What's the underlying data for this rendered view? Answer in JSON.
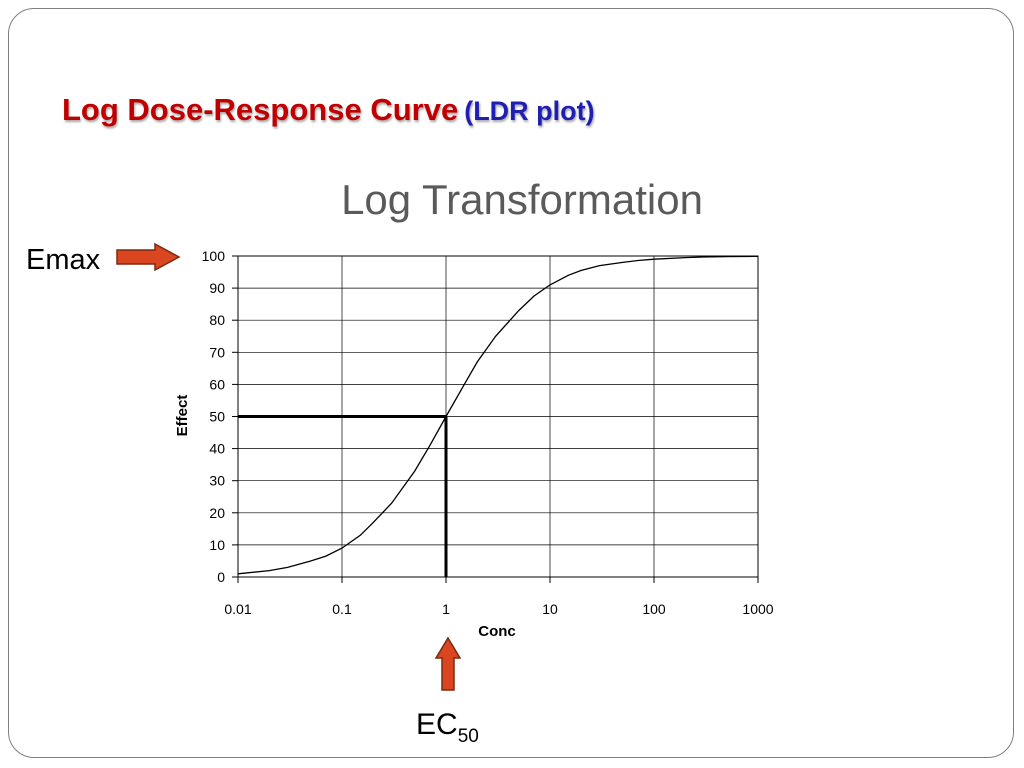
{
  "slide": {
    "title": "Log Dose-Response Curve",
    "title_suffix": "(LDR plot)",
    "subtitle": "Log Transformation",
    "emax_label": "Emax",
    "ec_label": "EC",
    "ec_subscript": "50"
  },
  "colors": {
    "title": "#c00000",
    "title_suffix": "#1f1fb4",
    "subtitle": "#5a5a5a",
    "arrow_fill": "#d9461f",
    "arrow_stroke": "#7a2a10"
  },
  "chart_data": {
    "type": "line",
    "xlabel": "Conc",
    "ylabel": "Effect",
    "x_scale": "log",
    "xlim": [
      0.01,
      1000
    ],
    "ylim": [
      0,
      100
    ],
    "x_ticks": [
      0.01,
      0.1,
      1,
      10,
      100,
      1000
    ],
    "x_tick_labels": [
      "0.01",
      "0.1",
      "1",
      "10",
      "100",
      "1000"
    ],
    "y_ticks": [
      0,
      10,
      20,
      30,
      40,
      50,
      60,
      70,
      80,
      90,
      100
    ],
    "y_tick_labels": [
      "0",
      "10",
      "20",
      "30",
      "40",
      "50",
      "60",
      "70",
      "80",
      "90",
      "100"
    ],
    "grid": true,
    "series": [
      {
        "x": [
          0.01,
          0.02,
          0.03,
          0.05,
          0.07,
          0.1,
          0.15,
          0.2,
          0.3,
          0.5,
          0.7,
          1,
          1.5,
          2,
          3,
          5,
          7,
          10,
          15,
          20,
          30,
          50,
          70,
          100,
          200,
          300,
          500,
          1000
        ],
        "y": [
          1,
          2,
          3,
          5,
          6.5,
          9,
          13,
          17,
          23,
          33,
          41,
          50,
          60,
          67,
          75,
          83,
          87.5,
          91,
          94,
          95.5,
          97,
          98,
          98.6,
          99,
          99.5,
          99.7,
          99.8,
          99.9
        ]
      }
    ],
    "annotations": [
      {
        "type": "reference_lines",
        "x": 1,
        "y": 50
      }
    ]
  }
}
